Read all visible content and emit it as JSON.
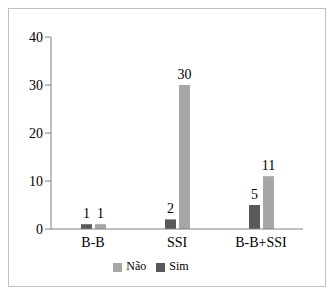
{
  "chart_data": {
    "type": "bar",
    "categories": [
      "B-B",
      "SSI",
      "B-B+SSI"
    ],
    "series": [
      {
        "name": "Sim",
        "color": "#595959",
        "values": [
          1,
          2,
          5
        ]
      },
      {
        "name": "Não",
        "color": "#a6a6a6",
        "values": [
          1,
          30,
          11
        ]
      }
    ],
    "ylim": [
      0,
      40
    ],
    "yticks": [
      0,
      10,
      20,
      30,
      40
    ],
    "grid": false,
    "legend": "bottom",
    "data_labels": true
  }
}
